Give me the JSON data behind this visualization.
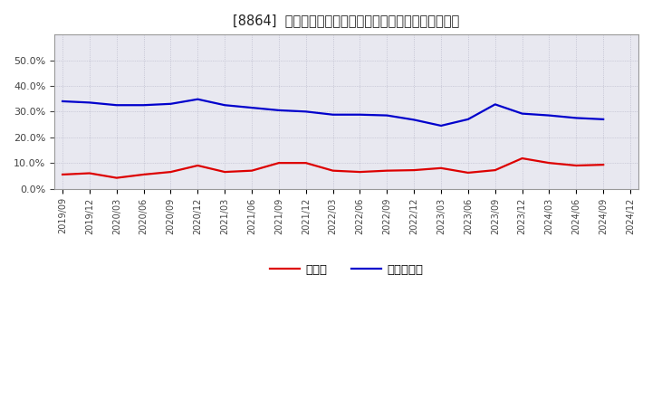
{
  "title": "[8864]  現預金、有利子負債の総資産に対する比率の推移",
  "x_labels": [
    "2019/09",
    "2019/12",
    "2020/03",
    "2020/06",
    "2020/09",
    "2020/12",
    "2021/03",
    "2021/06",
    "2021/09",
    "2021/12",
    "2022/03",
    "2022/06",
    "2022/09",
    "2022/12",
    "2023/03",
    "2023/06",
    "2023/09",
    "2023/12",
    "2024/03",
    "2024/06",
    "2024/09",
    "2024/12"
  ],
  "cash_ratio": [
    0.055,
    0.06,
    0.042,
    0.055,
    0.065,
    0.09,
    0.065,
    0.07,
    0.1,
    0.1,
    0.07,
    0.065,
    0.07,
    0.072,
    0.08,
    0.062,
    0.072,
    0.118,
    0.1,
    0.09,
    0.093,
    null
  ],
  "debt_ratio": [
    0.34,
    0.335,
    0.325,
    0.325,
    0.33,
    0.348,
    0.325,
    0.315,
    0.305,
    0.3,
    0.288,
    0.288,
    0.285,
    0.268,
    0.245,
    0.27,
    0.328,
    0.292,
    0.285,
    0.275,
    0.27,
    null
  ],
  "cash_color": "#dd0000",
  "debt_color": "#0000cc",
  "bg_color": "#ffffff",
  "plot_bg_color": "#e8e8f0",
  "grid_color": "#bbbbcc",
  "title_color": "#222222",
  "legend_cash": "現預金",
  "legend_debt": "有利子負債",
  "ylim": [
    0.0,
    0.6
  ],
  "yticks": [
    0.0,
    0.1,
    0.2,
    0.3,
    0.4,
    0.5
  ],
  "line_width": 1.6
}
